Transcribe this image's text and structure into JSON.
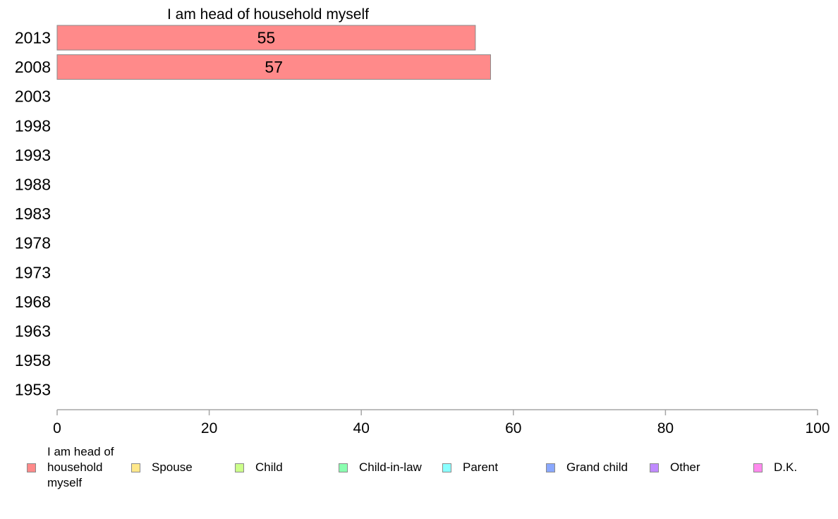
{
  "chart_data": {
    "type": "bar",
    "orientation": "horizontal",
    "title": "I am head of household myself",
    "categories": [
      "2013",
      "2008",
      "2003",
      "1998",
      "1993",
      "1988",
      "1983",
      "1978",
      "1973",
      "1968",
      "1963",
      "1958",
      "1953"
    ],
    "series": [
      {
        "name": "I am head of household myself",
        "color": "#ff8a8a",
        "values": [
          55,
          57,
          null,
          null,
          null,
          null,
          null,
          null,
          null,
          null,
          null,
          null,
          null
        ],
        "value_labels": [
          "55",
          "57",
          "",
          "",
          "",
          "",
          "",
          "",
          "",
          "",
          "",
          "",
          ""
        ]
      }
    ],
    "xlim": [
      0,
      100
    ],
    "xticks": [
      "0",
      "20",
      "40",
      "60",
      "80",
      "100"
    ],
    "grid": false,
    "legend_position": "bottom"
  },
  "legend": {
    "items": [
      {
        "label": "I am head of household myself",
        "color": "#ff8a8a"
      },
      {
        "label": "Spouse",
        "color": "#ffe88a"
      },
      {
        "label": "Child",
        "color": "#ccff8a"
      },
      {
        "label": "Child-in-law",
        "color": "#8affb0"
      },
      {
        "label": "Parent",
        "color": "#8affff"
      },
      {
        "label": "Grand child",
        "color": "#8aa8ff"
      },
      {
        "label": "Other",
        "color": "#c08aff"
      },
      {
        "label": "D.K.",
        "color": "#ff8aee"
      }
    ]
  }
}
